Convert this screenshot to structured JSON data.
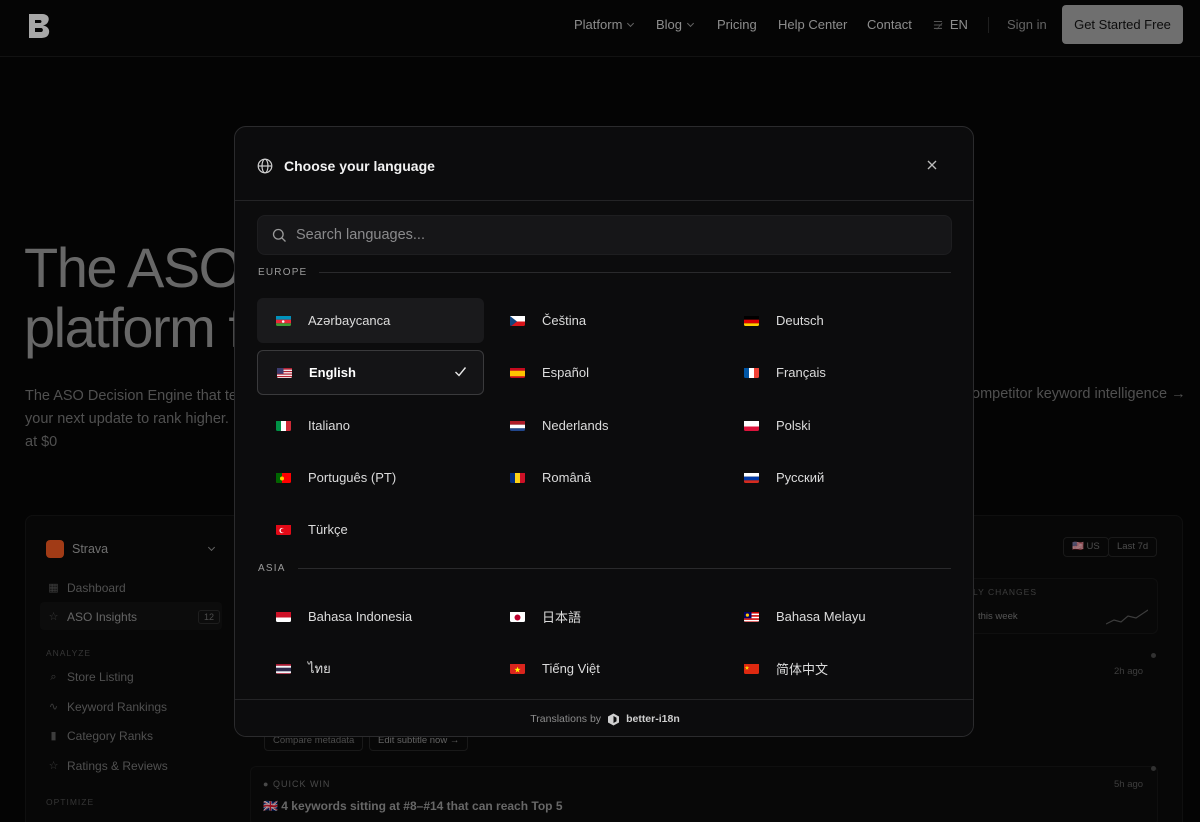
{
  "nav": {
    "links": [
      {
        "label": "Platform",
        "dropdown": true
      },
      {
        "label": "Blog",
        "dropdown": true
      },
      {
        "label": "Pricing",
        "dropdown": false
      },
      {
        "label": "Help Center",
        "dropdown": false
      },
      {
        "label": "Contact",
        "dropdown": false
      }
    ],
    "language_code": "EN",
    "sign_in": "Sign in",
    "cta": "Get Started Free"
  },
  "hero": {
    "title_line1": "The ASO",
    "title_line2": "platform f",
    "desc_line1": "The ASO Decision Engine that te",
    "desc_line2": "your next update to rank higher.",
    "desc_line3": "at $0",
    "desc_right": "ompetitor keyword intelligence →"
  },
  "dashboard": {
    "app_name": "Strava",
    "items": [
      {
        "label": "Dashboard",
        "icon": "grid-icon"
      },
      {
        "label": "ASO Insights",
        "icon": "star-icon",
        "badge": "12"
      }
    ],
    "section_analyze": "ANALYZE",
    "analyze_items": [
      "Store Listing",
      "Keyword Rankings",
      "Category Ranks",
      "Ratings & Reviews"
    ],
    "section_optimize": "OPTIMIZE",
    "filter_country": "🇺🇸 US",
    "filter_range": "Last 7d",
    "changes_label": "LY CHANGES",
    "changes_sub": "this week",
    "time_1": "2h ago",
    "time_2": "5h ago",
    "btn_compare": "Compare metadata",
    "btn_edit": "Edit subtitle now →",
    "quick_win_label": "QUICK WIN",
    "quick_win_text": "🇬🇧 4 keywords sitting at #8–#14 that can reach Top 5"
  },
  "modal": {
    "title": "Choose your language",
    "search_placeholder": "Search languages...",
    "sections": [
      {
        "name": "EUROPE",
        "languages": [
          {
            "label": "Azərbaycanca",
            "flag": "az",
            "state": "hover"
          },
          {
            "label": "Čeština",
            "flag": "cz"
          },
          {
            "label": "Deutsch",
            "flag": "de"
          },
          {
            "label": "English",
            "flag": "us",
            "state": "selected"
          },
          {
            "label": "Español",
            "flag": "es"
          },
          {
            "label": "Français",
            "flag": "fr"
          },
          {
            "label": "Italiano",
            "flag": "it"
          },
          {
            "label": "Nederlands",
            "flag": "nl"
          },
          {
            "label": "Polski",
            "flag": "pl"
          },
          {
            "label": "Português (PT)",
            "flag": "pt"
          },
          {
            "label": "Română",
            "flag": "ro"
          },
          {
            "label": "Русский",
            "flag": "ru"
          },
          {
            "label": "Türkçe",
            "flag": "tr"
          }
        ]
      },
      {
        "name": "ASIA",
        "languages": [
          {
            "label": "Bahasa Indonesia",
            "flag": "id"
          },
          {
            "label": "日本語",
            "flag": "jp"
          },
          {
            "label": "Bahasa Melayu",
            "flag": "my"
          },
          {
            "label": "ไทย",
            "flag": "th"
          },
          {
            "label": "Tiếng Việt",
            "flag": "vn"
          },
          {
            "label": "简体中文",
            "flag": "cn"
          }
        ]
      }
    ],
    "footer_prefix": "Translations by",
    "footer_brand": "better-i18n"
  },
  "colors": {
    "background": "#060606",
    "modal_bg": "#0c0c0d",
    "accent_strava": "#e0531f"
  }
}
